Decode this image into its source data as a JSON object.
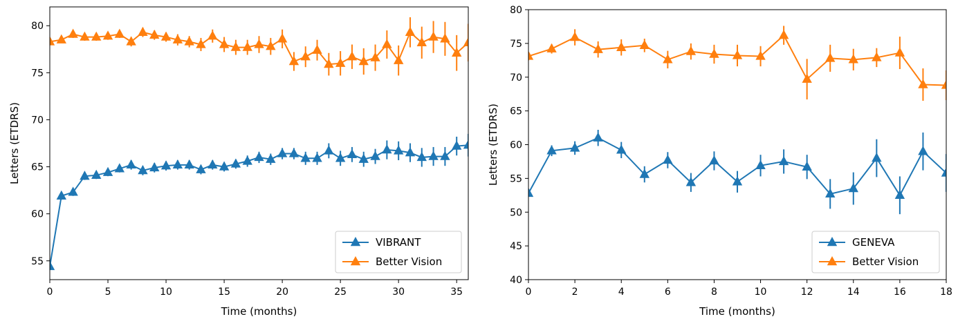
{
  "chart_data": [
    {
      "type": "line",
      "xlabel": "Time (months)",
      "ylabel": "Letters (ETDRS)",
      "xlim": [
        0,
        36
      ],
      "ylim": [
        53,
        82
      ],
      "xticks": [
        "0",
        "5",
        "10",
        "15",
        "20",
        "25",
        "30",
        "35"
      ],
      "yticks": [
        "55",
        "60",
        "65",
        "70",
        "75",
        "80"
      ],
      "grid": false,
      "legend_position": "lower-right",
      "x": [
        0,
        1,
        2,
        3,
        4,
        5,
        6,
        7,
        8,
        9,
        10,
        11,
        12,
        13,
        14,
        15,
        16,
        17,
        18,
        19,
        20,
        21,
        22,
        23,
        24,
        25,
        26,
        27,
        28,
        29,
        30,
        31,
        32,
        33,
        34,
        35,
        36
      ],
      "series": [
        {
          "name": "VIBRANT",
          "color": "#1f77b4",
          "values": [
            54.4,
            61.9,
            62.3,
            64.0,
            64.1,
            64.4,
            64.8,
            65.2,
            64.6,
            64.9,
            65.1,
            65.2,
            65.2,
            64.7,
            65.2,
            65.0,
            65.3,
            65.6,
            66.0,
            65.8,
            66.4,
            66.4,
            65.9,
            65.9,
            66.7,
            65.9,
            66.3,
            65.8,
            66.1,
            66.8,
            66.7,
            66.5,
            66.0,
            66.1,
            66.1,
            67.2,
            67.3
          ],
          "errors": [
            0,
            0.4,
            0.4,
            0.4,
            0.4,
            0.4,
            0.4,
            0.5,
            0.5,
            0.5,
            0.5,
            0.5,
            0.5,
            0.5,
            0.5,
            0.5,
            0.5,
            0.6,
            0.6,
            0.6,
            0.6,
            0.6,
            0.7,
            0.7,
            0.8,
            0.8,
            0.8,
            0.8,
            0.8,
            1.0,
            1.0,
            1.0,
            1.0,
            1.0,
            1.0,
            1.0,
            1.2
          ]
        },
        {
          "name": "Better Vision",
          "color": "#ff7f0e",
          "values": [
            78.3,
            78.5,
            79.1,
            78.8,
            78.8,
            78.9,
            79.1,
            78.3,
            79.3,
            79.0,
            78.8,
            78.5,
            78.3,
            78.0,
            78.9,
            78.0,
            77.7,
            77.7,
            78.0,
            77.8,
            78.6,
            76.2,
            76.7,
            77.4,
            75.9,
            76.0,
            76.7,
            76.2,
            76.6,
            78.0,
            76.3,
            79.3,
            78.2,
            78.8,
            78.6,
            77.1,
            78.2
          ],
          "errors": [
            0.3,
            0.3,
            0.4,
            0.4,
            0.4,
            0.4,
            0.4,
            0.5,
            0.5,
            0.5,
            0.5,
            0.6,
            0.6,
            0.7,
            0.7,
            0.8,
            0.8,
            0.8,
            0.9,
            0.9,
            1.0,
            1.0,
            1.1,
            1.1,
            1.2,
            1.3,
            1.3,
            1.4,
            1.4,
            1.5,
            1.6,
            1.6,
            1.7,
            1.7,
            1.8,
            1.9,
            2.0
          ]
        }
      ]
    },
    {
      "type": "line",
      "xlabel": "Time (months)",
      "ylabel": "Letters (ETDRS)",
      "xlim": [
        0,
        18
      ],
      "ylim": [
        40,
        80
      ],
      "xticks": [
        "0",
        "2",
        "4",
        "6",
        "8",
        "10",
        "12",
        "14",
        "16",
        "18"
      ],
      "yticks": [
        "40",
        "45",
        "50",
        "55",
        "60",
        "65",
        "70",
        "75",
        "80"
      ],
      "grid": false,
      "legend_position": "lower-right",
      "x": [
        0,
        1,
        2,
        3,
        4,
        5,
        6,
        7,
        8,
        9,
        10,
        11,
        12,
        13,
        14,
        15,
        16,
        17,
        18
      ],
      "series": [
        {
          "name": "GENEVA",
          "color": "#1f77b4",
          "values": [
            52.8,
            59.1,
            59.5,
            61.0,
            59.2,
            55.6,
            57.7,
            54.4,
            57.6,
            54.5,
            56.9,
            57.5,
            56.7,
            52.7,
            53.5,
            58.0,
            52.5,
            59.0,
            55.8
          ],
          "errors": [
            0,
            0.8,
            1.0,
            1.2,
            1.2,
            1.2,
            1.2,
            1.4,
            1.4,
            1.6,
            1.6,
            1.8,
            1.8,
            2.2,
            2.4,
            2.8,
            2.8,
            2.8,
            2.8
          ]
        },
        {
          "name": "Better Vision",
          "color": "#ff7f0e",
          "values": [
            73.1,
            74.2,
            75.9,
            74.1,
            74.4,
            74.7,
            72.6,
            73.8,
            73.4,
            73.2,
            73.1,
            76.2,
            69.7,
            72.8,
            72.6,
            72.9,
            73.6,
            68.9,
            68.8
          ],
          "errors": [
            0.6,
            0.7,
            1.2,
            1.2,
            1.2,
            1.0,
            1.3,
            1.2,
            1.4,
            1.6,
            1.5,
            1.4,
            3.0,
            2.0,
            1.6,
            1.4,
            2.4,
            2.4,
            2.2
          ]
        }
      ]
    }
  ]
}
